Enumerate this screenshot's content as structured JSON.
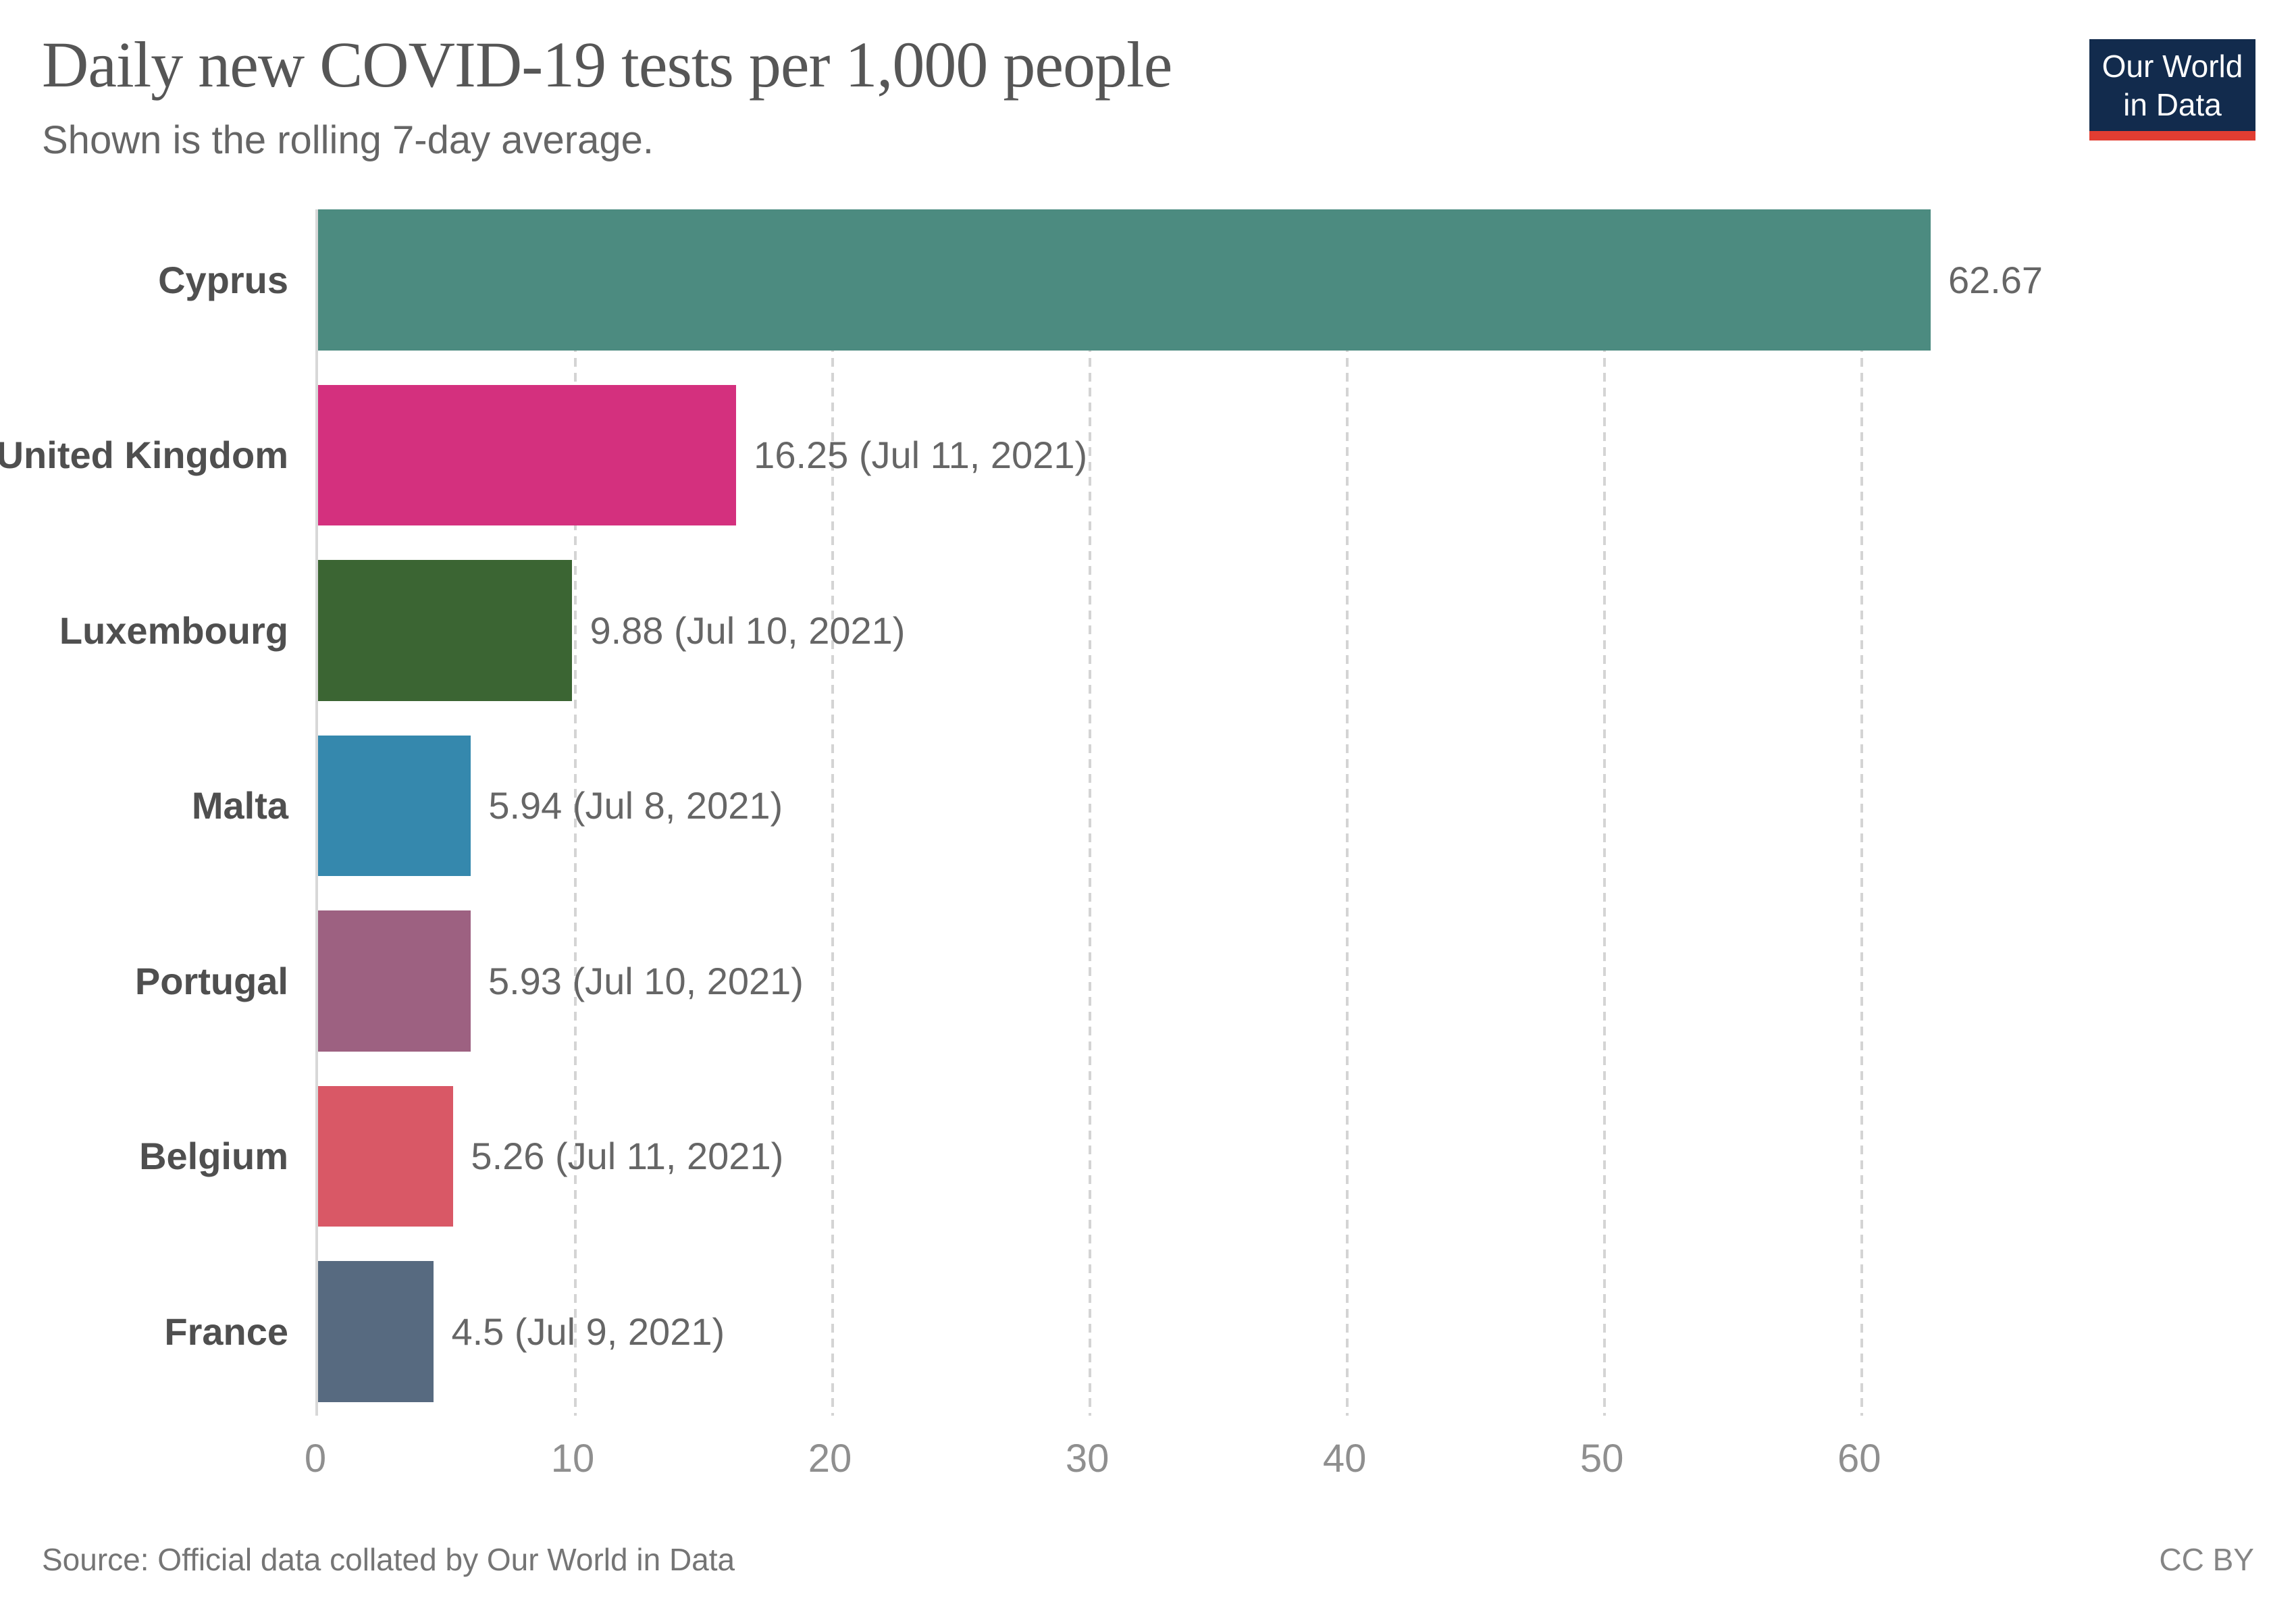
{
  "header": {
    "title": "Daily new COVID-19 tests per 1,000 people",
    "subtitle": "Shown is the rolling 7-day average.",
    "logo": {
      "line1": "Our World",
      "line2": "in Data",
      "bg_color": "#122B4D",
      "stripe_color": "#E23D32"
    }
  },
  "chart_data": {
    "type": "bar",
    "orientation": "horizontal",
    "title": "Daily new COVID-19 tests per 1,000 people",
    "subtitle": "Shown is the rolling 7-day average.",
    "xlabel": "",
    "ylabel": "",
    "categories": [
      "Cyprus",
      "United Kingdom",
      "Luxembourg",
      "Malta",
      "Portugal",
      "Belgium",
      "France"
    ],
    "values": [
      62.67,
      16.25,
      9.88,
      5.94,
      5.93,
      5.26,
      4.5
    ],
    "value_labels": [
      "62.67",
      "16.25 (Jul 11, 2021)",
      "9.88 (Jul 10, 2021)",
      "5.94 (Jul 8, 2021)",
      "5.93 (Jul 10, 2021)",
      "5.26 (Jul 11, 2021)",
      "4.5 (Jul 9, 2021)"
    ],
    "bar_colors": [
      "#4C8B80",
      "#D4307E",
      "#3B6533",
      "#3588AD",
      "#9D6181",
      "#D95866",
      "#576A80"
    ],
    "xticks": [
      0,
      10,
      20,
      30,
      40,
      50,
      60
    ],
    "xlim": [
      0,
      75.4
    ],
    "grid": "dashed-vertical-gridlines",
    "legend": "none"
  },
  "footer": {
    "source": "Source: Official data collated by Our World in Data",
    "license": "CC BY"
  }
}
